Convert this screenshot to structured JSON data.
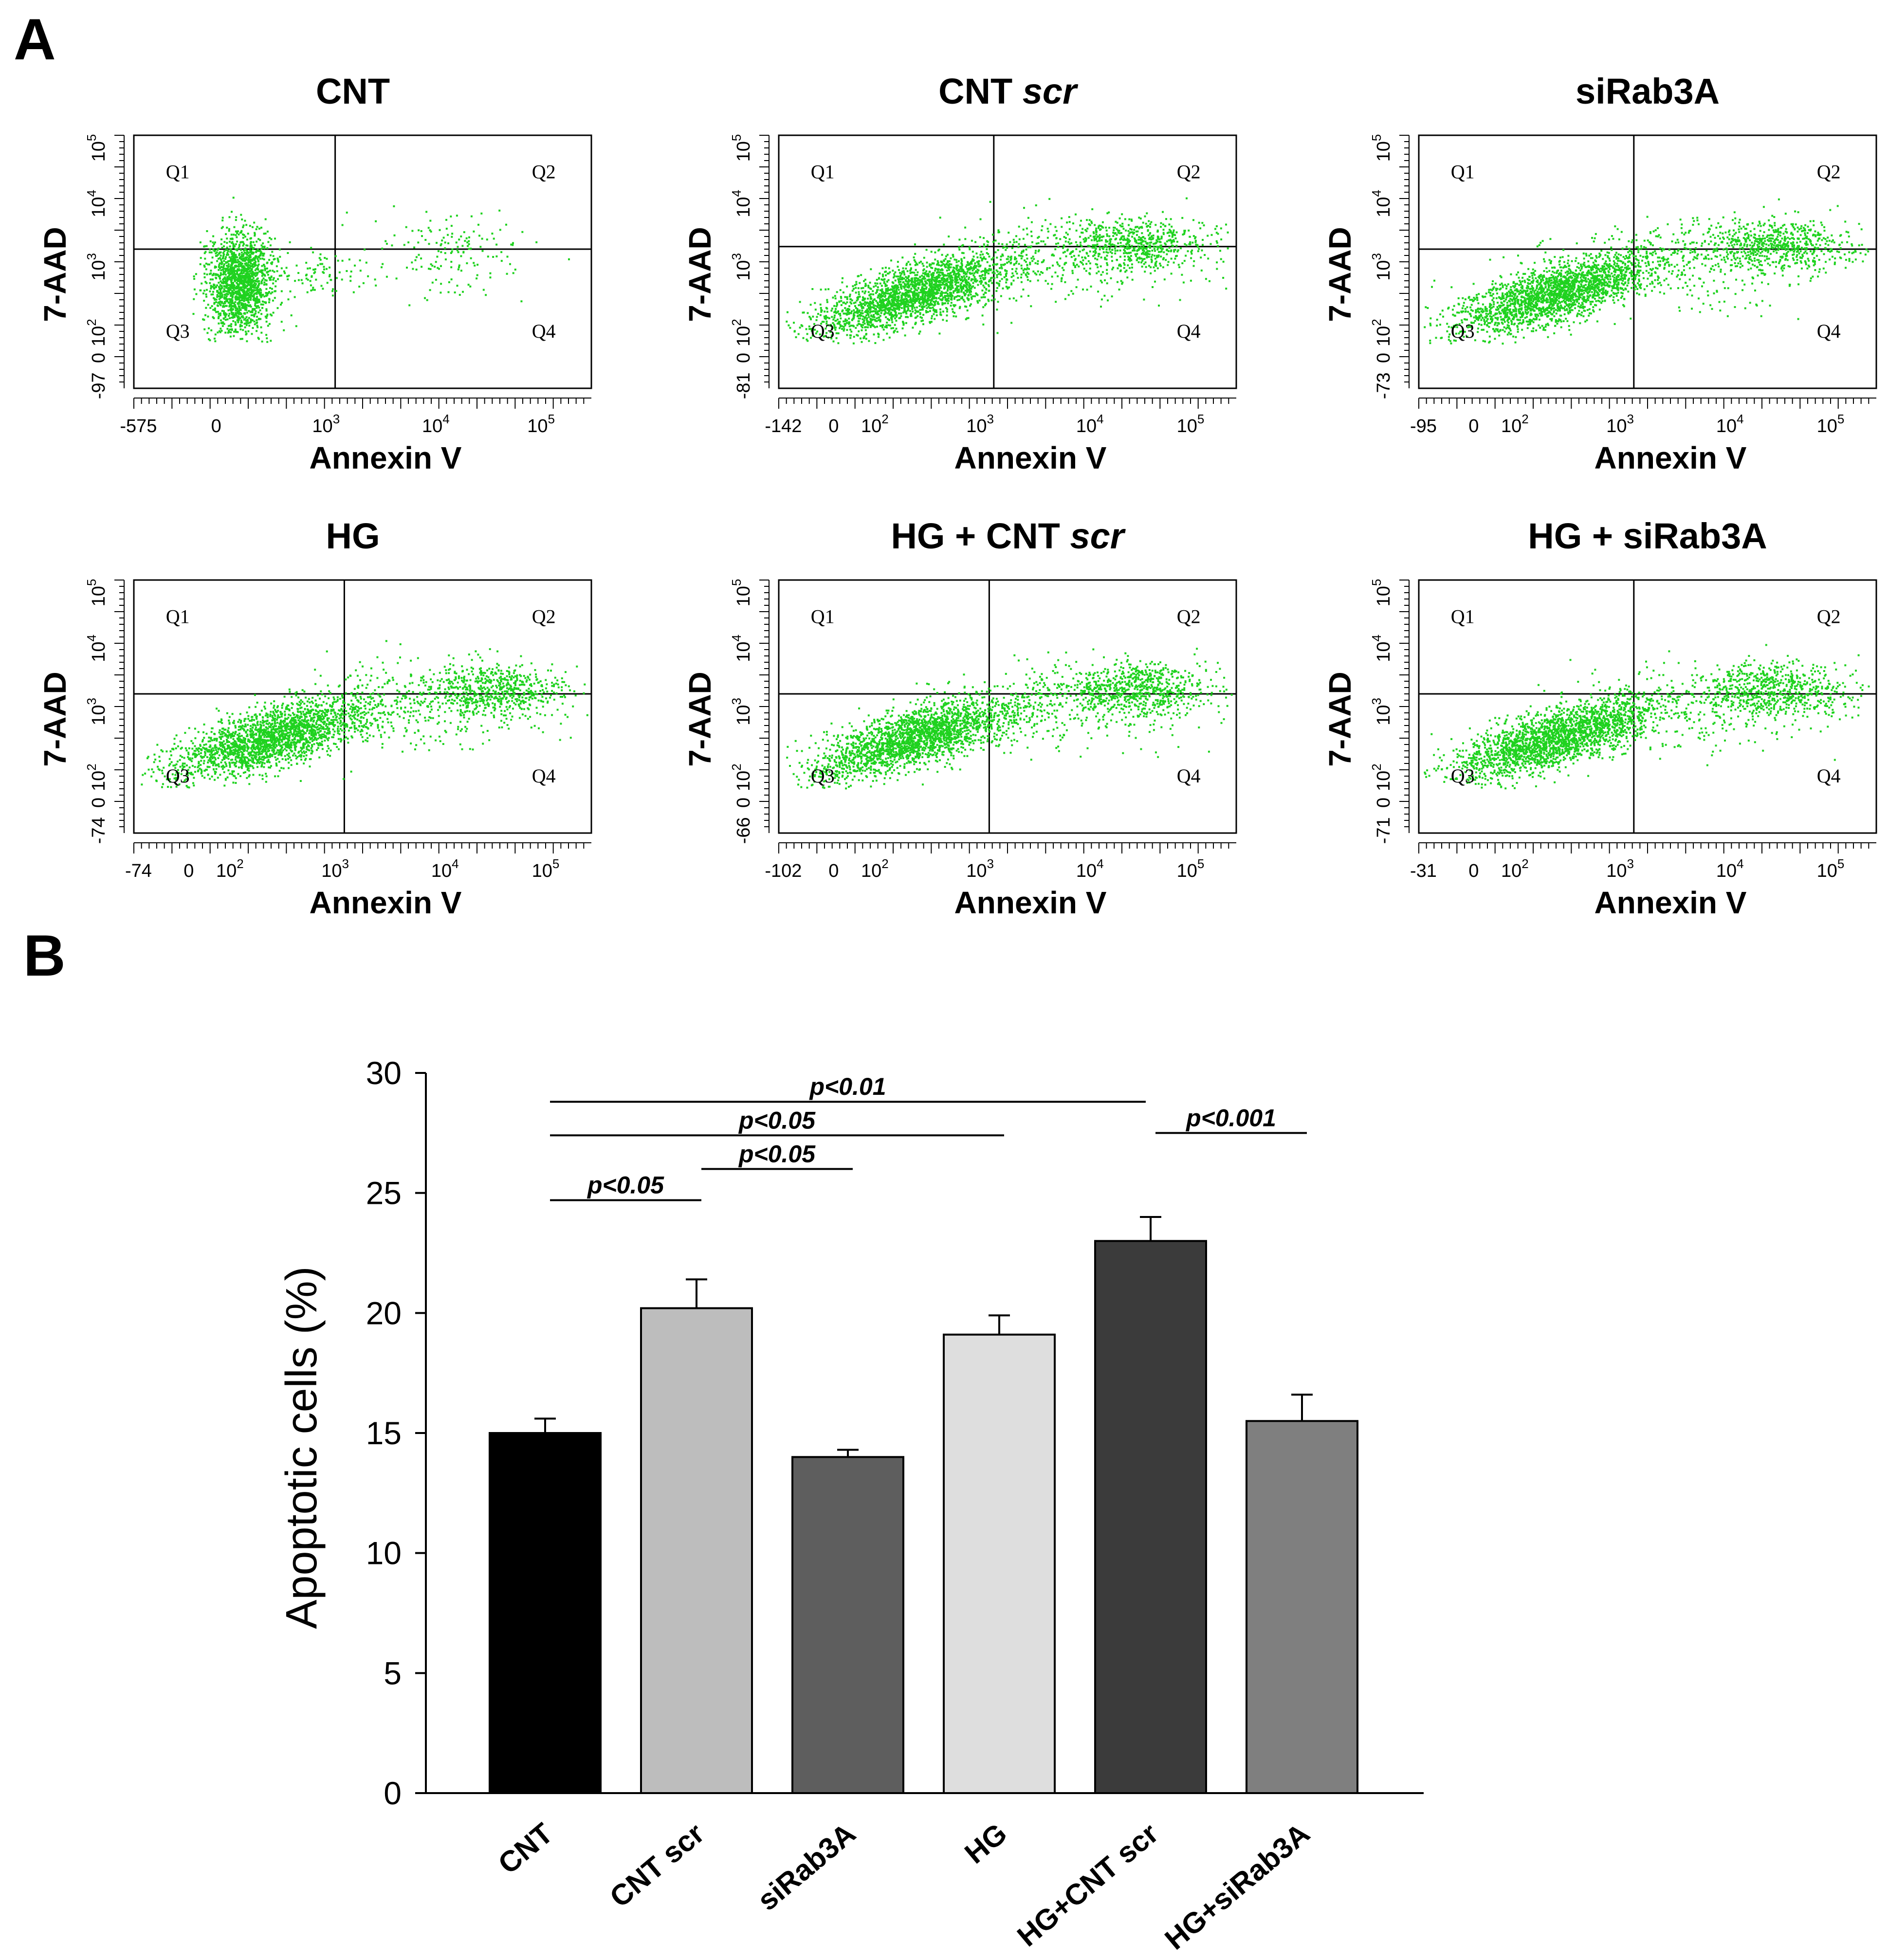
{
  "panel_labels": {
    "a": "A",
    "b": "B"
  },
  "colors": {
    "dots": "#1fd21f",
    "frame": "#000000"
  },
  "flow_panels": [
    {
      "title": "CNT",
      "title_italic": "",
      "xlabel": "Annexin V",
      "ylabel": "7-AAD",
      "xticks": [
        "-575",
        "0",
        "10",
        "10",
        "10"
      ],
      "xexp": [
        "",
        "",
        "3",
        "4",
        "5"
      ],
      "yticks": [
        "-97",
        "0",
        "10",
        "10",
        "10",
        "10"
      ],
      "yexp": [
        "",
        "",
        "2",
        "3",
        "4",
        "5"
      ],
      "quadrants": [
        "Q1",
        "Q2",
        "Q3",
        "Q4"
      ]
    },
    {
      "title": "CNT ",
      "title_italic": "scr",
      "xlabel": "Annexin V",
      "ylabel": "7-AAD",
      "xticks": [
        "-142",
        "0",
        "10",
        "10",
        "10",
        "10"
      ],
      "xexp": [
        "",
        "",
        "2",
        "3",
        "4",
        "5"
      ],
      "yticks": [
        "-81",
        "0",
        "10",
        "10",
        "10",
        "10"
      ],
      "yexp": [
        "",
        "",
        "2",
        "3",
        "4",
        "5"
      ],
      "quadrants": [
        "Q1",
        "Q2",
        "Q3",
        "Q4"
      ]
    },
    {
      "title": "siRab3A",
      "title_italic": "",
      "xlabel": "Annexin V",
      "ylabel": "7-AAD",
      "xticks": [
        "-95",
        "0",
        "10",
        "10",
        "10",
        "10"
      ],
      "xexp": [
        "",
        "",
        "2",
        "3",
        "4",
        "5"
      ],
      "yticks": [
        "-73",
        "0",
        "10",
        "10",
        "10",
        "10"
      ],
      "yexp": [
        "",
        "",
        "2",
        "3",
        "4",
        "5"
      ],
      "quadrants": [
        "Q1",
        "Q2",
        "Q3",
        "Q4"
      ]
    },
    {
      "title": "HG",
      "title_italic": "",
      "xlabel": "Annexin V",
      "ylabel": "7-AAD",
      "xticks": [
        "-74",
        "0",
        "10",
        "10",
        "10",
        "10"
      ],
      "xexp": [
        "",
        "",
        "2",
        "3",
        "4",
        "5"
      ],
      "yticks": [
        "-74",
        "0",
        "10",
        "10",
        "10",
        "10"
      ],
      "yexp": [
        "",
        "",
        "2",
        "3",
        "4",
        "5"
      ],
      "quadrants": [
        "Q1",
        "Q2",
        "Q3",
        "Q4"
      ]
    },
    {
      "title": "HG + CNT ",
      "title_italic": "scr",
      "xlabel": "Annexin V",
      "ylabel": "7-AAD",
      "xticks": [
        "-102",
        "0",
        "10",
        "10",
        "10",
        "10"
      ],
      "xexp": [
        "",
        "",
        "2",
        "3",
        "4",
        "5"
      ],
      "yticks": [
        "-66",
        "0",
        "10",
        "10",
        "10",
        "10"
      ],
      "yexp": [
        "",
        "",
        "2",
        "3",
        "4",
        "5"
      ],
      "quadrants": [
        "Q1",
        "Q2",
        "Q3",
        "Q4"
      ]
    },
    {
      "title": "HG + siRab3A",
      "title_italic": "",
      "xlabel": "Annexin V",
      "ylabel": "7-AAD",
      "xticks": [
        "-31",
        "0",
        "10",
        "10",
        "10",
        "10"
      ],
      "xexp": [
        "",
        "",
        "2",
        "3",
        "4",
        "5"
      ],
      "yticks": [
        "-71",
        "0",
        "10",
        "10",
        "10",
        "10"
      ],
      "yexp": [
        "",
        "",
        "2",
        "3",
        "4",
        "5"
      ],
      "quadrants": [
        "Q1",
        "Q2",
        "Q3",
        "Q4"
      ]
    }
  ],
  "chart_data": {
    "type": "bar",
    "ylabel": "Apoptotic cells (%)",
    "ylim": [
      0,
      30
    ],
    "yticks": [
      0,
      5,
      10,
      15,
      20,
      25,
      30
    ],
    "categories": [
      "CNT",
      "CNT scr",
      "siRab3A",
      "HG",
      "HG+CNT scr",
      "HG+siRab3A"
    ],
    "values": [
      15.0,
      20.2,
      14.0,
      19.1,
      23.0,
      15.5
    ],
    "errors": [
      0.6,
      1.2,
      0.3,
      0.8,
      1.0,
      1.1
    ],
    "bar_colors": [
      "#000000",
      "#bdbdbd",
      "#5e5e5e",
      "#dedede",
      "#3b3b3b",
      "#7f7f7f"
    ],
    "significance": [
      {
        "from": 0,
        "to": 4,
        "y": 28.8,
        "label": "p<0.01"
      },
      {
        "from": 0,
        "to": 3,
        "y": 27.4,
        "label": "p<0.05"
      },
      {
        "from": 1,
        "to": 2,
        "y": 26.0,
        "label": "p<0.05"
      },
      {
        "from": 0,
        "to": 1,
        "y": 24.7,
        "label": "p<0.05"
      },
      {
        "from": 4,
        "to": 5,
        "y": 27.5,
        "label": "p<0.001"
      }
    ]
  }
}
